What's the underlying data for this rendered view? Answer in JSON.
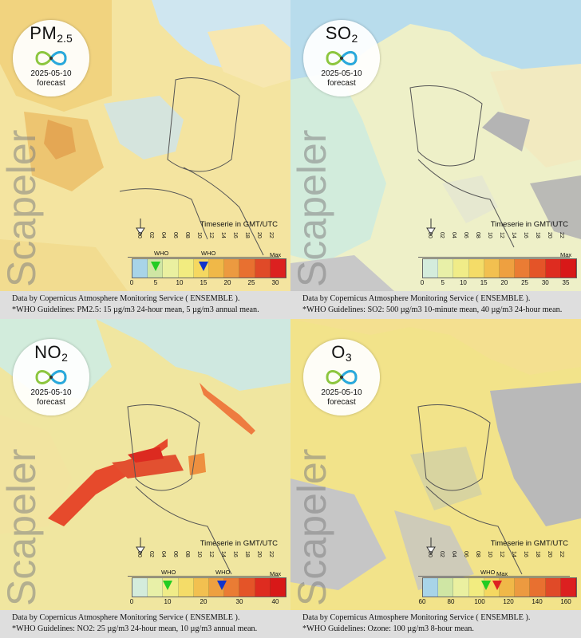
{
  "panels": [
    {
      "id": "pm25",
      "pollutant": "PM",
      "pollutant_sub": "2.5",
      "date": "2025-05-10",
      "forecast_label": "forecast",
      "watermark": "Scapeler",
      "timeserie_label": "Timeserie in GMT/UTC",
      "hours": [
        "00",
        "02",
        "04",
        "06",
        "08",
        "10",
        "12",
        "14",
        "16",
        "18",
        "20",
        "22"
      ],
      "who_labels": [
        "WHO",
        "WHO"
      ],
      "max_label": "Max",
      "scale_ticks": [
        "0",
        "5",
        "10",
        "15",
        "20",
        "25",
        "30"
      ],
      "who_markers": [
        {
          "value": 5,
          "color": "#22cc22"
        },
        {
          "value": 15,
          "color": "#1133cc"
        }
      ],
      "scale_colors": [
        "#a8d4e8",
        "#cfe6a4",
        "#eaf0a0",
        "#f2ec80",
        "#f5d860",
        "#f0b848",
        "#ec9a40",
        "#e87030",
        "#e04a28",
        "#dc2020"
      ],
      "footer_line1": "Data by Copernicus Atmosphere Monitoring Service ( ENSEMBLE ).",
      "footer_line2": "*WHO Guidelines: PM2.5: 15 µg/m3 24-hour mean, 5 µg/m3 annual mean."
    },
    {
      "id": "so2",
      "pollutant": "SO",
      "pollutant_sub": "2",
      "date": "2025-05-10",
      "forecast_label": "forecast",
      "watermark": "Scapeler",
      "timeserie_label": "Timeserie in GMT/UTC",
      "hours": [
        "00",
        "02",
        "04",
        "06",
        "08",
        "10",
        "12",
        "14",
        "16",
        "18",
        "20",
        "22"
      ],
      "who_labels": [],
      "max_label": "Max",
      "scale_ticks": [
        "0",
        "5",
        "10",
        "15",
        "20",
        "25",
        "30",
        "35"
      ],
      "who_markers": [],
      "scale_colors": [
        "#d4ecdc",
        "#e8f0a8",
        "#f0ec88",
        "#f4dc68",
        "#f2c050",
        "#eea040",
        "#ea7c34",
        "#e45428",
        "#de2c20",
        "#d81818"
      ],
      "footer_line1": "Data by Copernicus Atmosphere Monitoring Service ( ENSEMBLE ).",
      "footer_line2": "*WHO Guidelines: SO2: 500 µg/m3 10-minute mean, 40 µg/m3 24-hour mean."
    },
    {
      "id": "no2",
      "pollutant": "NO",
      "pollutant_sub": "2",
      "date": "2025-05-10",
      "forecast_label": "forecast",
      "watermark": "Scapeler",
      "timeserie_label": "Timeserie in GMT/UTC",
      "hours": [
        "00",
        "02",
        "04",
        "06",
        "08",
        "10",
        "12",
        "14",
        "16",
        "18",
        "20",
        "22"
      ],
      "who_labels": [
        "WHO",
        "WHO"
      ],
      "max_label": "Max",
      "scale_ticks": [
        "0",
        "10",
        "20",
        "30",
        "40"
      ],
      "who_markers": [
        {
          "value": 10,
          "color": "#22cc22"
        },
        {
          "value": 25,
          "color": "#1133cc"
        }
      ],
      "scale_colors": [
        "#d4ecdc",
        "#e8f0a8",
        "#f0ec88",
        "#f4dc68",
        "#f2c050",
        "#eea040",
        "#ea7c34",
        "#e45428",
        "#de2c20",
        "#d81818"
      ],
      "footer_line1": "Data by Copernicus Atmosphere Monitoring Service ( ENSEMBLE ).",
      "footer_line2": "*WHO Guidelines: NO2: 25 µg/m3 24-hour mean, 10 µg/m3 annual mean."
    },
    {
      "id": "o3",
      "pollutant": "O",
      "pollutant_sub": "3",
      "date": "2025-05-10",
      "forecast_label": "forecast",
      "watermark": "Scapeler",
      "timeserie_label": "Timeserie in GMT/UTC",
      "hours": [
        "00",
        "02",
        "04",
        "06",
        "08",
        "10",
        "12",
        "14",
        "16",
        "18",
        "20",
        "22"
      ],
      "who_labels": [
        "WHO"
      ],
      "max_label": "Max",
      "scale_ticks": [
        "60",
        "80",
        "100",
        "120",
        "140",
        "160"
      ],
      "who_markers": [
        {
          "value": 100,
          "color": "#22cc22"
        },
        {
          "value": 110,
          "color": "#dd2222"
        }
      ],
      "scale_colors": [
        "#a8d4e8",
        "#cfe6a4",
        "#eaf0a0",
        "#f2ec80",
        "#f5d860",
        "#f0b848",
        "#ec9a40",
        "#e87030",
        "#e04a28",
        "#dc2020"
      ],
      "footer_line1": "Data by Copernicus Atmosphere Monitoring Service ( ENSEMBLE ).",
      "footer_line2": "*WHO Guidelines: Ozone: 100 µg/m3 8-hour mean."
    }
  ]
}
